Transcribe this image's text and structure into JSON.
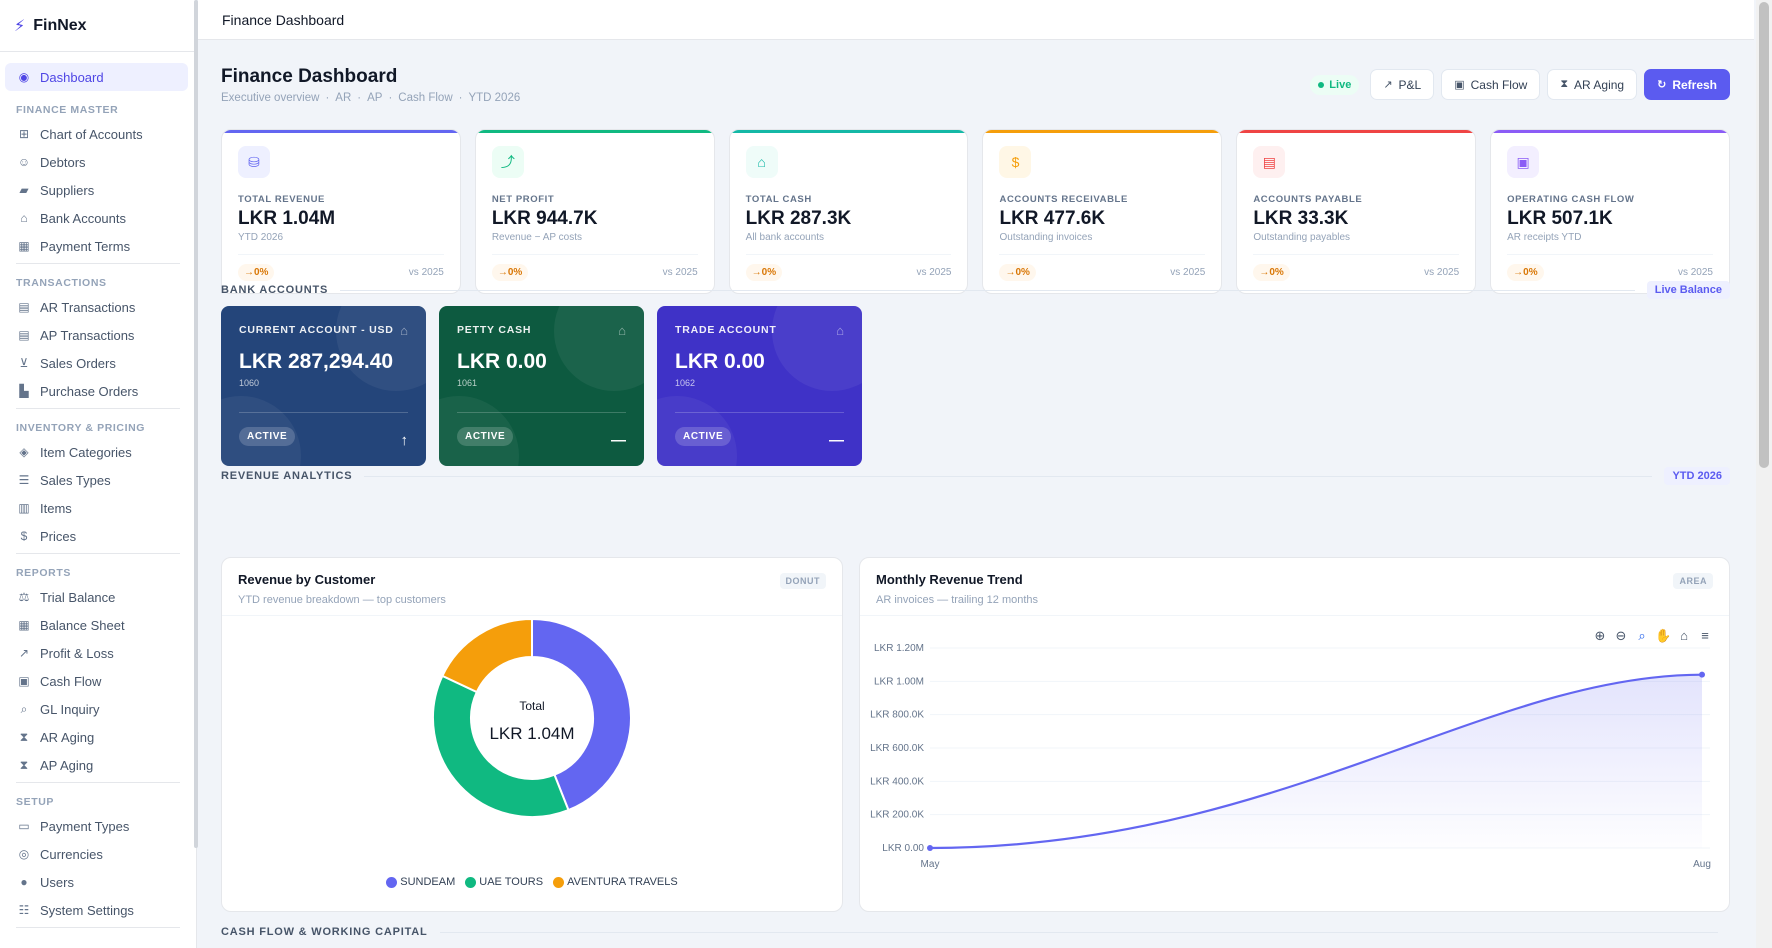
{
  "app": {
    "name": "FinNex"
  },
  "topbar": {
    "title": "Finance Dashboard"
  },
  "sidebar": {
    "active": {
      "label": "Dashboard",
      "icon": "dashboard-icon"
    },
    "sections": [
      {
        "title": "FINANCE MASTER",
        "items": [
          {
            "label": "Chart of Accounts",
            "icon": "sitemap-icon"
          },
          {
            "label": "Debtors",
            "icon": "users-icon"
          },
          {
            "label": "Suppliers",
            "icon": "truck-icon"
          },
          {
            "label": "Bank Accounts",
            "icon": "bank-icon"
          },
          {
            "label": "Payment Terms",
            "icon": "calendar-icon"
          }
        ]
      },
      {
        "title": "TRANSACTIONS",
        "items": [
          {
            "label": "AR Transactions",
            "icon": "file-invoice-icon"
          },
          {
            "label": "AP Transactions",
            "icon": "file-invoice-icon"
          },
          {
            "label": "Sales Orders",
            "icon": "cart-icon"
          },
          {
            "label": "Purchase Orders",
            "icon": "dolly-icon"
          }
        ]
      },
      {
        "title": "INVENTORY & PRICING",
        "items": [
          {
            "label": "Item Categories",
            "icon": "tags-icon"
          },
          {
            "label": "Sales Types",
            "icon": "list-icon"
          },
          {
            "label": "Items",
            "icon": "boxes-icon"
          },
          {
            "label": "Prices",
            "icon": "dollar-icon"
          }
        ]
      },
      {
        "title": "REPORTS",
        "items": [
          {
            "label": "Trial Balance",
            "icon": "scale-icon"
          },
          {
            "label": "Balance Sheet",
            "icon": "table-icon"
          },
          {
            "label": "Profit & Loss",
            "icon": "line-chart-icon"
          },
          {
            "label": "Cash Flow",
            "icon": "money-icon"
          },
          {
            "label": "GL Inquiry",
            "icon": "search-icon"
          },
          {
            "label": "AR Aging",
            "icon": "hourglass-icon"
          },
          {
            "label": "AP Aging",
            "icon": "hourglass-icon"
          }
        ]
      },
      {
        "title": "SETUP",
        "items": [
          {
            "label": "Payment Types",
            "icon": "credit-card-icon"
          },
          {
            "label": "Currencies",
            "icon": "coins-icon"
          },
          {
            "label": "Users",
            "icon": "user-icon"
          },
          {
            "label": "System Settings",
            "icon": "sliders-icon"
          }
        ]
      }
    ]
  },
  "header": {
    "title": "Finance Dashboard",
    "breadcrumb": [
      "Executive overview",
      "AR",
      "AP",
      "Cash Flow",
      "YTD 2026"
    ],
    "live": "Live",
    "buttons": {
      "pl": "P&L",
      "cashflow": "Cash Flow",
      "araging": "AR Aging",
      "refresh": "Refresh"
    }
  },
  "kpis": [
    {
      "label": "TOTAL REVENUE",
      "value": "LKR 1.04M",
      "sub": "YTD 2026",
      "change": "→0%",
      "vs": "vs 2025",
      "color": "#6366f1",
      "bg": "#eef0ff",
      "icon": "coins-icon",
      "glyph": "⛁"
    },
    {
      "label": "NET PROFIT",
      "value": "LKR 944.7K",
      "sub": "Revenue − AP costs",
      "change": "→0%",
      "vs": "vs 2025",
      "color": "#10b981",
      "bg": "#ecfdf5",
      "icon": "trend-icon",
      "glyph": "⤴"
    },
    {
      "label": "TOTAL CASH",
      "value": "LKR 287.3K",
      "sub": "All bank accounts",
      "change": "→0%",
      "vs": "vs 2025",
      "color": "#14b8a6",
      "bg": "#effcf9",
      "icon": "bank-icon",
      "glyph": "⌂"
    },
    {
      "label": "ACCOUNTS RECEIVABLE",
      "value": "LKR 477.6K",
      "sub": "Outstanding invoices",
      "change": "→0%",
      "vs": "vs 2025",
      "color": "#f59e0b",
      "bg": "#fff7e6",
      "icon": "invoice-dollar-icon",
      "glyph": "$"
    },
    {
      "label": "ACCOUNTS PAYABLE",
      "value": "LKR 33.3K",
      "sub": "Outstanding payables",
      "change": "→0%",
      "vs": "vs 2025",
      "color": "#ef4444",
      "bg": "#fef0f0",
      "icon": "invoice-icon",
      "glyph": "▤"
    },
    {
      "label": "OPERATING CASH FLOW",
      "value": "LKR 507.1K",
      "sub": "AR receipts YTD",
      "change": "→0%",
      "vs": "vs 2025",
      "color": "#8b5cf6",
      "bg": "#f3efff",
      "icon": "money-bill-icon",
      "glyph": "▣"
    }
  ],
  "bank_section": {
    "title": "BANK ACCOUNTS",
    "tag": "Live Balance"
  },
  "banks": [
    {
      "name": "CURRENT ACCOUNT - USD",
      "balance": "LKR 287,294.40",
      "code": "1060",
      "status": "ACTIVE",
      "trend": "↑",
      "color": "#24457a"
    },
    {
      "name": "PETTY CASH",
      "balance": "LKR 0.00",
      "code": "1061",
      "status": "ACTIVE",
      "trend": "—",
      "color": "#0d5a40"
    },
    {
      "name": "TRADE ACCOUNT",
      "balance": "LKR 0.00",
      "code": "1062",
      "status": "ACTIVE",
      "trend": "—",
      "color": "#3f32c7"
    }
  ],
  "revenue_section": {
    "title": "REVENUE ANALYTICS",
    "tag": "YTD 2026"
  },
  "donut": {
    "title": "Revenue by Customer",
    "subtitle": "YTD revenue breakdown — top customers",
    "badge": "DONUT",
    "center_label": "Total",
    "center_value": "LKR 1.04M"
  },
  "area": {
    "title": "Monthly Revenue Trend",
    "subtitle": "AR invoices — trailing 12 months",
    "badge": "AREA"
  },
  "cashflow_section": {
    "title": "CASH FLOW & WORKING CAPITAL"
  },
  "chart_data": [
    {
      "type": "pie",
      "title": "Revenue by Customer",
      "categories": [
        "SUNDEAM",
        "UAE TOURS",
        "AVENTURA TRAVELS"
      ],
      "values": [
        44,
        38,
        18
      ],
      "colors": [
        "#6366f1",
        "#10b981",
        "#f59e0b"
      ]
    },
    {
      "type": "area",
      "title": "Monthly Revenue Trend",
      "x": [
        "May",
        "Aug"
      ],
      "y": [
        0,
        1040000
      ],
      "ylim": [
        0,
        1200000
      ],
      "yticks": [
        "LKR 0.00",
        "LKR 200.0K",
        "LKR 400.0K",
        "LKR 600.0K",
        "LKR 800.0K",
        "LKR 1.00M",
        "LKR 1.20M"
      ],
      "color": "#6366f1"
    }
  ]
}
